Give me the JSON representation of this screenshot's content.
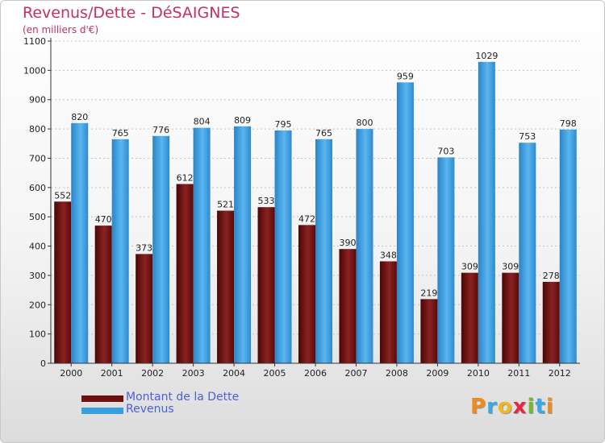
{
  "title": "Revenus/Dette - DéSAIGNES",
  "subtitle": "(en milliers d'€)",
  "logo": {
    "letters": [
      "P",
      "r",
      "o",
      "x",
      "i",
      "t",
      "i"
    ],
    "colors": [
      "#f08a1c",
      "#38a8e8",
      "#f0b81c",
      "#e8283c",
      "#70b82c",
      "#38a8e8",
      "#f08a1c"
    ]
  },
  "colors": {
    "dette": "#6e1010",
    "revenus": "#3a9ee0",
    "legend_text": "#4a62d6",
    "title": "#c0306a"
  },
  "chart_data": {
    "type": "bar",
    "categories": [
      "2000",
      "2001",
      "2002",
      "2003",
      "2004",
      "2005",
      "2006",
      "2007",
      "2008",
      "2009",
      "2010",
      "2011",
      "2012"
    ],
    "series": [
      {
        "name": "Montant de la Dette",
        "values": [
          552,
          470,
          373,
          612,
          521,
          533,
          472,
          390,
          348,
          219,
          309,
          309,
          278
        ]
      },
      {
        "name": "Revenus",
        "values": [
          820,
          765,
          776,
          804,
          809,
          795,
          765,
          800,
          959,
          703,
          1029,
          753,
          798
        ]
      }
    ],
    "yticks": [
      0,
      100,
      200,
      300,
      400,
      500,
      600,
      700,
      800,
      900,
      1000,
      1100
    ],
    "ylim": [
      0,
      1100
    ],
    "grid": "horizontal dashed",
    "legend_position": "bottom-left"
  }
}
